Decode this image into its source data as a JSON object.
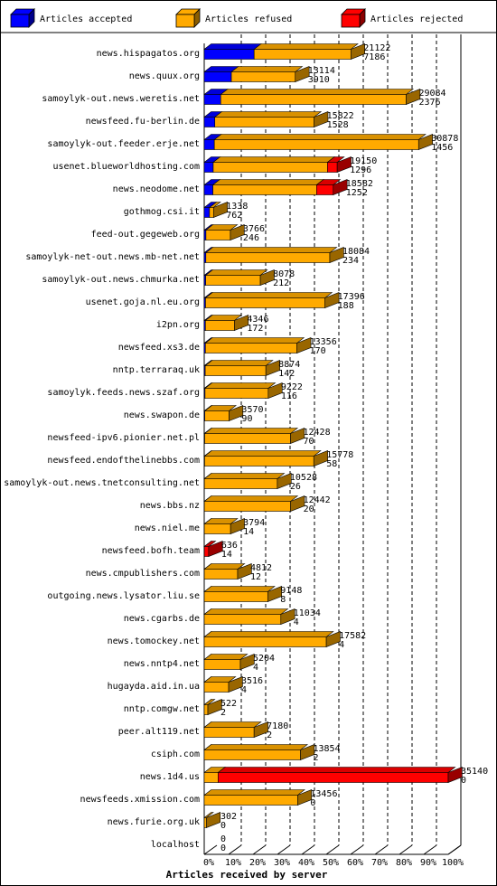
{
  "chart_data": {
    "type": "bar",
    "orientation": "horizontal",
    "stacked": true,
    "title": "Articles received by server",
    "xlabel": "Articles received by server",
    "xlim": [
      0,
      100
    ],
    "x_unit": "%",
    "x_ticks": [
      "0%",
      "10%",
      "20%",
      "30%",
      "40%",
      "50%",
      "60%",
      "70%",
      "80%",
      "90%",
      "100%"
    ],
    "grid": true,
    "legend_position": "top",
    "colors": {
      "accepted": "#0000ff",
      "refused": "#ffaa00",
      "rejected": "#ff0000"
    },
    "series": [
      {
        "key": "accepted",
        "name": "Articles accepted",
        "color": "#0000ff"
      },
      {
        "key": "refused",
        "name": "Articles refused",
        "color": "#ffaa00"
      },
      {
        "key": "rejected",
        "name": "Articles rejected",
        "color": "#ff0000"
      }
    ],
    "rows": [
      {
        "label": "news.hispagatos.org",
        "accepted": 7186,
        "refused": 13936,
        "rejected": 0,
        "total": 21122,
        "accepted_label": 7186
      },
      {
        "label": "news.quux.org",
        "accepted": 3910,
        "refused": 9204,
        "rejected": 0,
        "total": 13114,
        "accepted_label": 3910
      },
      {
        "label": "samoylyk-out.news.weretis.net",
        "accepted": 2376,
        "refused": 26708,
        "rejected": 0,
        "total": 29084,
        "accepted_label": 2376
      },
      {
        "label": "newsfeed.fu-berlin.de",
        "accepted": 1528,
        "refused": 14294,
        "rejected": 0,
        "total": 15822,
        "accepted_label": 1528
      },
      {
        "label": "samoylyk-out.feeder.erje.net",
        "accepted": 1456,
        "refused": 29422,
        "rejected": 0,
        "total": 30878,
        "accepted_label": 1456
      },
      {
        "label": "usenet.blueworldhosting.com",
        "accepted": 1296,
        "refused": 16454,
        "rejected": 1400,
        "total": 19150,
        "accepted_label": 1296
      },
      {
        "label": "news.neodome.net",
        "accepted": 1252,
        "refused": 14930,
        "rejected": 2400,
        "total": 18582,
        "accepted_label": 1252
      },
      {
        "label": "gothmog.csi.it",
        "accepted": 762,
        "refused": 576,
        "rejected": 0,
        "total": 1338,
        "accepted_label": 762
      },
      {
        "label": "feed-out.gegeweb.org",
        "accepted": 246,
        "refused": 3520,
        "rejected": 0,
        "total": 3766,
        "accepted_label": 246
      },
      {
        "label": "samoylyk-net-out.news.mb-net.net",
        "accepted": 234,
        "refused": 17850,
        "rejected": 0,
        "total": 18084,
        "accepted_label": 234
      },
      {
        "label": "samoylyk-out.news.chmurka.net",
        "accepted": 212,
        "refused": 7866,
        "rejected": 0,
        "total": 8078,
        "accepted_label": 212
      },
      {
        "label": "usenet.goja.nl.eu.org",
        "accepted": 188,
        "refused": 17208,
        "rejected": 0,
        "total": 17396,
        "accepted_label": 188
      },
      {
        "label": "i2pn.org",
        "accepted": 172,
        "refused": 4174,
        "rejected": 0,
        "total": 4346,
        "accepted_label": 172
      },
      {
        "label": "newsfeed.xs3.de",
        "accepted": 170,
        "refused": 13186,
        "rejected": 0,
        "total": 13356,
        "accepted_label": 170
      },
      {
        "label": "nntp.terraraq.uk",
        "accepted": 142,
        "refused": 8732,
        "rejected": 0,
        "total": 8874,
        "accepted_label": 142
      },
      {
        "label": "samoylyk.feeds.news.szaf.org",
        "accepted": 116,
        "refused": 9106,
        "rejected": 0,
        "total": 9222,
        "accepted_label": 116
      },
      {
        "label": "news.swapon.de",
        "accepted": 90,
        "refused": 3480,
        "rejected": 0,
        "total": 3570,
        "accepted_label": 90
      },
      {
        "label": "newsfeed-ipv6.pionier.net.pl",
        "accepted": 70,
        "refused": 12358,
        "rejected": 0,
        "total": 12428,
        "accepted_label": 70
      },
      {
        "label": "newsfeed.endofthelinebbs.com",
        "accepted": 58,
        "refused": 15720,
        "rejected": 0,
        "total": 15778,
        "accepted_label": 58
      },
      {
        "label": "samoylyk-out.news.tnetconsulting.net",
        "accepted": 26,
        "refused": 10502,
        "rejected": 0,
        "total": 10528,
        "accepted_label": 26
      },
      {
        "label": "news.bbs.nz",
        "accepted": 20,
        "refused": 12422,
        "rejected": 0,
        "total": 12442,
        "accepted_label": 20
      },
      {
        "label": "news.niel.me",
        "accepted": 14,
        "refused": 3780,
        "rejected": 0,
        "total": 3794,
        "accepted_label": 14
      },
      {
        "label": "newsfeed.bofh.team",
        "accepted": 14,
        "refused": 0,
        "rejected": 622,
        "total": 636,
        "accepted_label": 14
      },
      {
        "label": "news.cmpublishers.com",
        "accepted": 12,
        "refused": 4800,
        "rejected": 0,
        "total": 4812,
        "accepted_label": 12
      },
      {
        "label": "outgoing.news.lysator.liu.se",
        "accepted": 8,
        "refused": 9140,
        "rejected": 0,
        "total": 9148,
        "accepted_label": 8
      },
      {
        "label": "news.cgarbs.de",
        "accepted": 4,
        "refused": 11030,
        "rejected": 0,
        "total": 11034,
        "accepted_label": 4
      },
      {
        "label": "news.tomockey.net",
        "accepted": 4,
        "refused": 17578,
        "rejected": 0,
        "total": 17582,
        "accepted_label": 4
      },
      {
        "label": "news.nntp4.net",
        "accepted": 4,
        "refused": 5200,
        "rejected": 0,
        "total": 5204,
        "accepted_label": 4
      },
      {
        "label": "hugayda.aid.in.ua",
        "accepted": 4,
        "refused": 3512,
        "rejected": 0,
        "total": 3516,
        "accepted_label": 4
      },
      {
        "label": "nntp.comgw.net",
        "accepted": 2,
        "refused": 520,
        "rejected": 0,
        "total": 522,
        "accepted_label": 2
      },
      {
        "label": "peer.alt119.net",
        "accepted": 2,
        "refused": 7178,
        "rejected": 0,
        "total": 7180,
        "accepted_label": 2
      },
      {
        "label": "csiph.com",
        "accepted": 2,
        "refused": 13852,
        "rejected": 0,
        "total": 13854,
        "accepted_label": 2
      },
      {
        "label": "news.1d4.us",
        "accepted": 0,
        "refused": 2000,
        "rejected": 33140,
        "total": 35140,
        "accepted_label": 0
      },
      {
        "label": "newsfeeds.xmission.com",
        "accepted": 0,
        "refused": 13456,
        "rejected": 0,
        "total": 13456,
        "accepted_label": 0
      },
      {
        "label": "news.furie.org.uk",
        "accepted": 0,
        "refused": 302,
        "rejected": 0,
        "total": 302,
        "accepted_label": 0
      },
      {
        "label": "localhost",
        "accepted": 0,
        "refused": 0,
        "rejected": 0,
        "total": 0,
        "accepted_label": 0
      }
    ]
  }
}
